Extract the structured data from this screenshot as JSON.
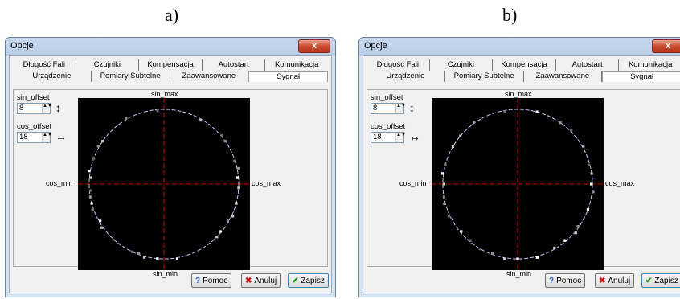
{
  "captions": [
    "a)",
    "b)"
  ],
  "windows": [
    {
      "title": "Opcje",
      "close_label": "x",
      "tabs_row1": [
        "Długość Fali",
        "Czujniki",
        "Kompensacja",
        "Autostart",
        "Komunikacja"
      ],
      "tabs_row2": [
        "Urządzenie",
        "Pomiary Subtelne",
        "Zaawansowane",
        "Sygnał"
      ],
      "active_tab": "Sygnał",
      "sin_offset": {
        "label": "sin_offset",
        "value": "8"
      },
      "cos_offset": {
        "label": "cos_offset",
        "value": "18"
      },
      "axis_labels": {
        "top": "sin_max",
        "bottom": "sin_min",
        "left": "cos_min",
        "right": "cos_max"
      },
      "buttons": {
        "help": "Pomoc",
        "cancel": "Anuluj",
        "save": "Zapisz"
      }
    },
    {
      "title": "Opcje",
      "close_label": "x",
      "tabs_row1": [
        "Długość Fali",
        "Czujniki",
        "Kompensacja",
        "Autostart",
        "Komunikacja"
      ],
      "tabs_row2": [
        "Urządzenie",
        "Pomiary Subtelne",
        "Zaawansowane",
        "Sygnał"
      ],
      "active_tab": "Sygnał",
      "sin_offset": {
        "label": "sin_offset",
        "value": "8"
      },
      "cos_offset": {
        "label": "cos_offset",
        "value": "18"
      },
      "axis_labels": {
        "top": "sin_max",
        "bottom": "sin_min",
        "left": "cos_min",
        "right": "cos_max"
      },
      "buttons": {
        "help": "Pomoc",
        "cancel": "Anuluj",
        "save": "Zapisz"
      }
    }
  ],
  "colors": {
    "plot_bg": "#000000",
    "crosshair": "#d00000",
    "circle": "#c8c8ff",
    "help_icon": "#1e64c8",
    "cancel_icon": "#cc1010",
    "save_icon": "#1a8f1a"
  },
  "icons": {
    "sin_offset": "vertical-double-arrow-icon",
    "cos_offset": "horizontal-double-arrow-icon",
    "help": "question-mark-icon",
    "cancel": "x-mark-icon",
    "save": "checkmark-icon"
  },
  "chart_data": [
    {
      "type": "scatter",
      "title": "",
      "xlabel": "",
      "ylabel": "",
      "xlim": [
        -1.15,
        1.15
      ],
      "ylim": [
        -1.15,
        1.15
      ],
      "points_angles_deg": [
        5,
        -3,
        12,
        18,
        -15,
        -25,
        -30,
        160,
        170,
        175,
        190,
        200,
        210,
        145,
        120,
        95,
        265,
        255,
        250,
        245,
        280,
        60,
        35,
        40,
        -40,
        -45,
        150,
        185,
        195,
        215
      ]
    },
    {
      "type": "scatter",
      "title": "",
      "xlabel": "",
      "ylabel": "",
      "xlim": [
        -1.15,
        1.15
      ],
      "ylim": [
        -1.15,
        1.15
      ],
      "points_angles_deg": [
        0,
        8,
        -6,
        15,
        -20,
        30,
        -35,
        165,
        172,
        180,
        190,
        205,
        220,
        140,
        125,
        100,
        270,
        260,
        250,
        240,
        285,
        300,
        55,
        45,
        -50,
        150,
        195,
        230,
        75,
        320
      ]
    }
  ]
}
